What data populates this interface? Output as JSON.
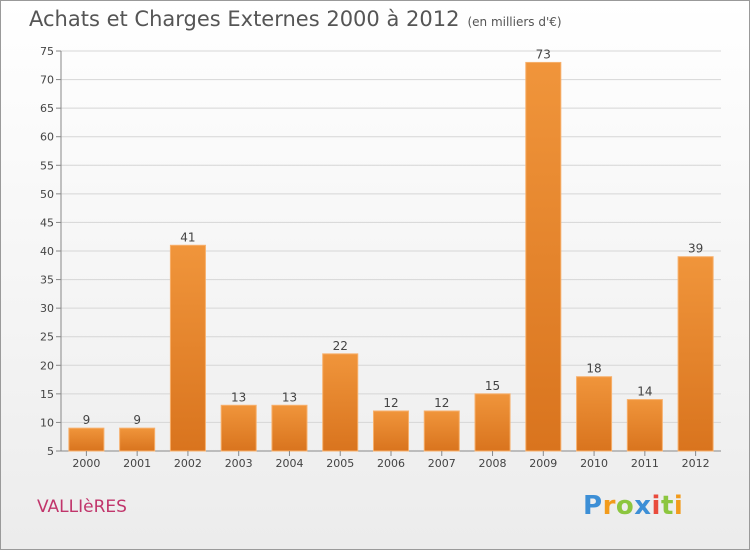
{
  "chart_data": {
    "type": "bar",
    "title": "Achats et Charges Externes 2000 à 2012",
    "subtitle": "(en milliers d'€)",
    "categories": [
      "2000",
      "2001",
      "2002",
      "2003",
      "2004",
      "2005",
      "2006",
      "2007",
      "2008",
      "2009",
      "2010",
      "2011",
      "2012"
    ],
    "values": [
      9,
      9,
      41,
      13,
      13,
      22,
      12,
      12,
      15,
      73,
      18,
      14,
      39
    ],
    "ylim": [
      5,
      75
    ],
    "yticks": [
      5,
      10,
      15,
      20,
      25,
      30,
      35,
      40,
      45,
      50,
      55,
      60,
      65,
      70,
      75
    ],
    "grid": true,
    "legend": "none",
    "bar_color": "#f0953b",
    "bar_color_dark": "#d9741e"
  },
  "footer": {
    "location": "VALLIèRES",
    "logo_letters": [
      "P",
      "r",
      "o",
      "x",
      "i",
      "t",
      "i"
    ],
    "logo_colors": [
      "#3d8fd6",
      "#f29b1c",
      "#8cc63f",
      "#3d8fd6",
      "#e94b3c",
      "#8cc63f",
      "#f29b1c"
    ]
  }
}
